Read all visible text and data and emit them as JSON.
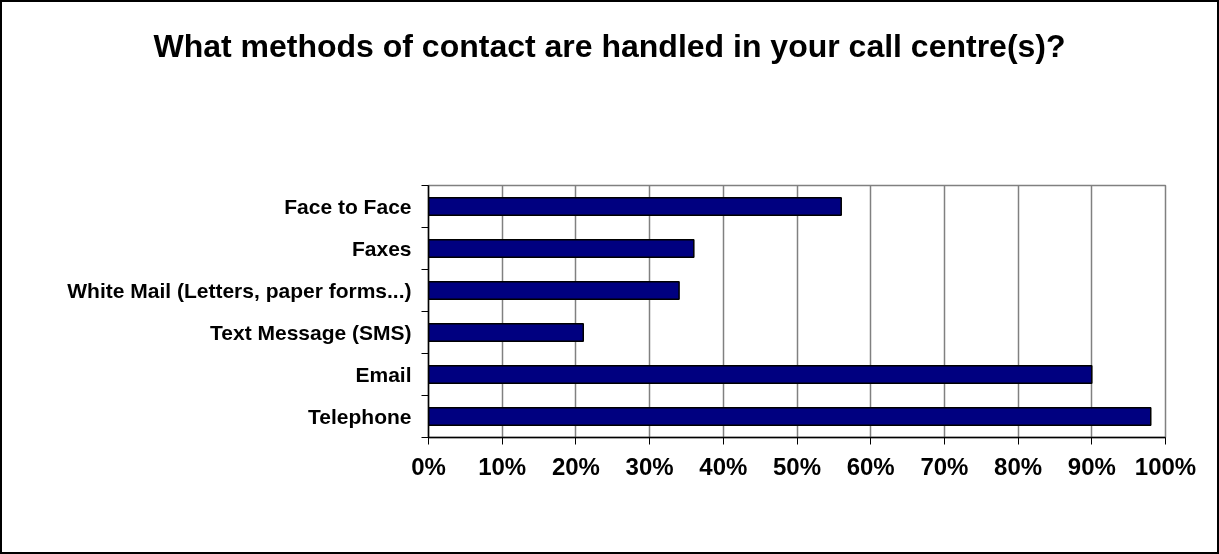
{
  "chart_data": {
    "type": "bar",
    "orientation": "horizontal",
    "title": "What methods of contact are handled in your call centre(s)?",
    "categories": [
      "Face to Face",
      "Faxes",
      "White Mail (Letters, paper forms...)",
      "Text Message (SMS)",
      "Email",
      "Telephone"
    ],
    "values": [
      56,
      36,
      34,
      21,
      90,
      98
    ],
    "color": "#000080",
    "xlim": [
      0,
      100
    ],
    "xticks": [
      {
        "value": 0,
        "label": "0%"
      },
      {
        "value": 10,
        "label": "10%"
      },
      {
        "value": 20,
        "label": "20%"
      },
      {
        "value": 30,
        "label": "30%"
      },
      {
        "value": 40,
        "label": "40%"
      },
      {
        "value": 50,
        "label": "50%"
      },
      {
        "value": 60,
        "label": "60%"
      },
      {
        "value": 70,
        "label": "70%"
      },
      {
        "value": 80,
        "label": "80%"
      },
      {
        "value": 90,
        "label": "90%"
      },
      {
        "value": 100,
        "label": "100%"
      }
    ],
    "grid": "x"
  }
}
